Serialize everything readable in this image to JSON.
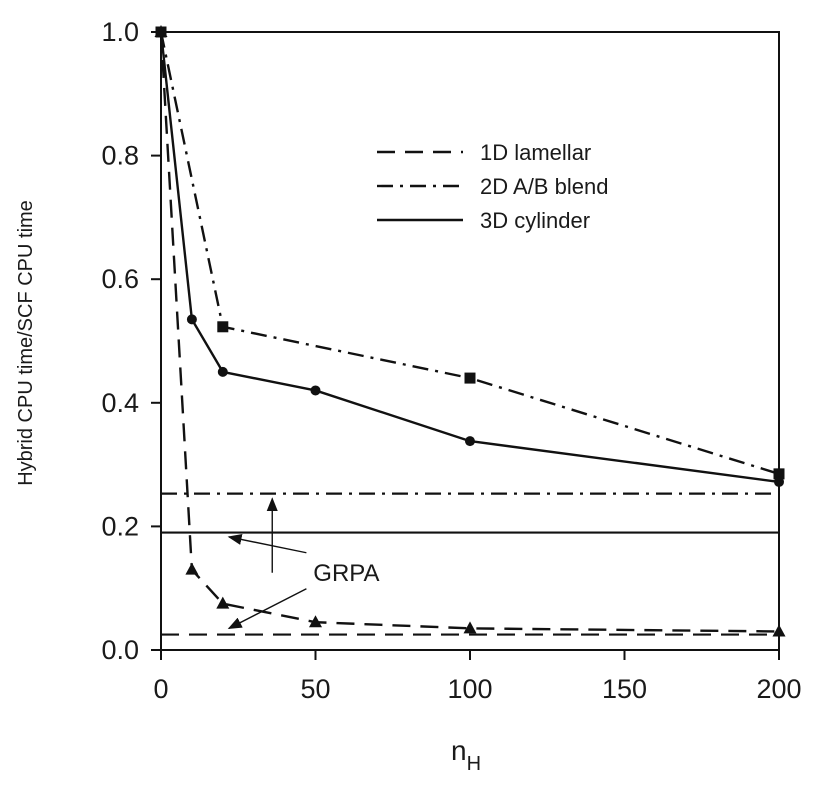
{
  "chart_data": {
    "type": "line",
    "xlabel": "n",
    "xlabel_sub": "H",
    "ylabel": "Hybrid CPU time/SCF CPU time",
    "xlim": [
      0,
      200
    ],
    "ylim": [
      0,
      1.0
    ],
    "x_ticks": [
      "0",
      "50",
      "100",
      "150",
      "200"
    ],
    "y_ticks": [
      "0.0",
      "0.2",
      "0.4",
      "0.6",
      "0.8",
      "1.0"
    ],
    "legend_position": "top-right",
    "series": [
      {
        "name": "1D lamellar",
        "style": "dashed",
        "marker": "triangle",
        "color": "#111111",
        "x": [
          0,
          10,
          20,
          50,
          100,
          200
        ],
        "y": [
          1.0,
          0.13,
          0.075,
          0.045,
          0.035,
          0.03
        ]
      },
      {
        "name": "2D A/B blend",
        "style": "dashdot",
        "marker": "square",
        "color": "#111111",
        "x": [
          0,
          20,
          100,
          200
        ],
        "y": [
          1.0,
          0.523,
          0.44,
          0.285
        ]
      },
      {
        "name": "3D cylinder",
        "style": "solid",
        "marker": "circle",
        "color": "#111111",
        "x": [
          0,
          10,
          20,
          50,
          100,
          200
        ],
        "y": [
          1.0,
          0.535,
          0.45,
          0.42,
          0.338,
          0.272
        ]
      }
    ],
    "reference_lines": [
      {
        "style": "dashdot",
        "y": 0.253
      },
      {
        "style": "solid",
        "y": 0.19
      },
      {
        "style": "dashed",
        "y": 0.025
      }
    ],
    "annotation": {
      "text": "GRPA",
      "x": 60,
      "y": 0.125
    }
  }
}
